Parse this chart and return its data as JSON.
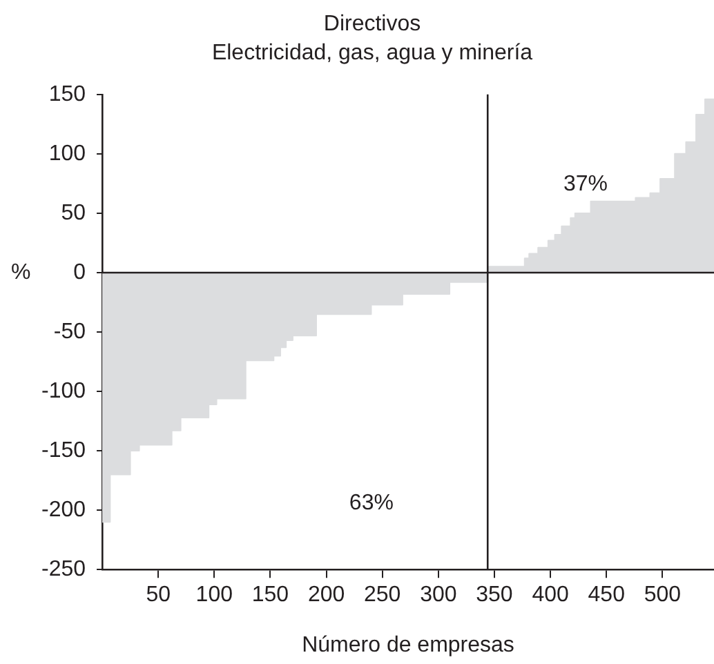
{
  "chart_data": {
    "type": "area",
    "title": "Directivos",
    "subtitle": "Electricidad, gas, agua y minería",
    "xlabel": "Número de empresas",
    "ylabel": "%",
    "x": [
      0,
      7,
      25,
      33,
      62,
      70,
      95,
      102,
      128,
      153,
      159,
      164,
      170,
      191,
      240,
      268,
      310,
      344,
      377,
      381,
      389,
      398,
      404,
      410,
      418,
      422,
      436,
      476,
      489,
      498,
      511,
      521,
      530,
      538,
      546
    ],
    "series": [
      {
        "color": "#dcdddf",
        "values": [
          -210,
          -170,
          -150,
          -145,
          -133,
          -122,
          -111,
          -106,
          -74,
          -70,
          -63,
          -57,
          -53,
          -35,
          -27,
          -18,
          -8,
          5,
          12,
          16,
          21,
          27,
          32,
          39,
          46,
          50,
          60,
          63,
          67,
          79,
          100,
          110,
          133,
          146,
          146
        ]
      }
    ],
    "xlim": [
      0,
      546
    ],
    "xticks": [
      50,
      100,
      150,
      200,
      250,
      300,
      350,
      400,
      450,
      500
    ],
    "ylim": [
      -250,
      150
    ],
    "yticks": [
      -250,
      -200,
      -150,
      -100,
      -50,
      0,
      50,
      100,
      150
    ],
    "ref_lines": [
      {
        "axis": "y",
        "value": 0,
        "color": "#231f20"
      },
      {
        "axis": "x",
        "value": 344,
        "color": "#231f20"
      }
    ],
    "annotations": [
      "37%",
      "63%"
    ],
    "grid": false,
    "legend": false
  }
}
